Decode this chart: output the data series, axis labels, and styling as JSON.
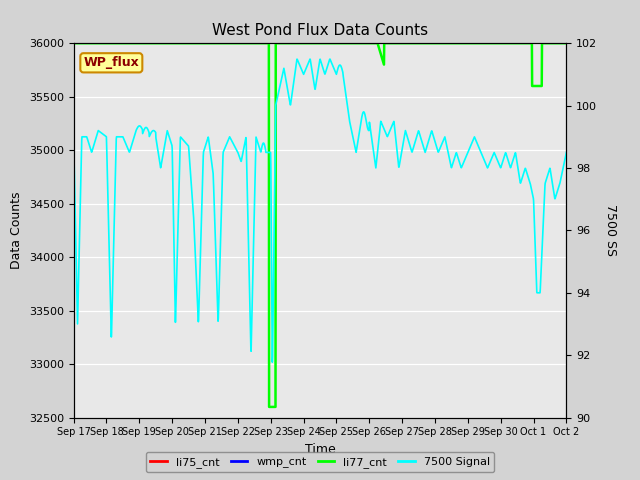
{
  "title": "West Pond Flux Data Counts",
  "xlabel": "Time",
  "ylabel_left": "Data Counts",
  "ylabel_right": "7500 SS",
  "ylim_left": [
    32500,
    36000
  ],
  "ylim_right": [
    90,
    102
  ],
  "fig_bg": "#d3d3d3",
  "plot_bg": "#e8e8e8",
  "ann_text": "WP_flux",
  "ann_bg": "#ffff99",
  "ann_edge": "#cc8800",
  "x_tick_labels": [
    "Sep 17",
    "Sep 18",
    "Sep 19",
    "Sep 20",
    "Sep 21",
    "Sep 22",
    "Sep 23",
    "Sep 24",
    "Sep 25",
    "Sep 26",
    "Sep 27",
    "Sep 28",
    "Sep 29",
    "Sep 30",
    "Oct 1",
    "Oct 2"
  ],
  "yticks_left": [
    32500,
    33000,
    33500,
    34000,
    34500,
    35000,
    35500,
    36000
  ],
  "yticks_right": [
    90,
    92,
    94,
    96,
    98,
    100,
    102
  ],
  "green_color": "#00ff00",
  "cyan_color": "#00ffff",
  "red_color": "#ff0000",
  "blue_color": "#0000ff"
}
